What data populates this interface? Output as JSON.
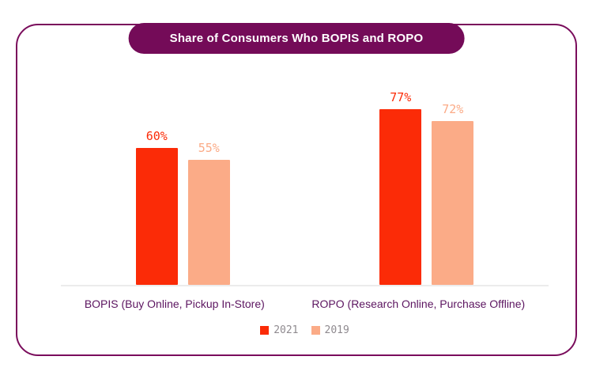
{
  "chart_data": {
    "type": "bar",
    "title": "Share of Consumers Who BOPIS and ROPO",
    "categories": [
      "BOPIS (Buy Online, Pickup In-Store)",
      "ROPO (Research Online, Purchase Offline)"
    ],
    "series": [
      {
        "name": "2021",
        "values": [
          60,
          77
        ],
        "color": "#fb2b07"
      },
      {
        "name": "2019",
        "values": [
          55,
          72
        ],
        "color": "#fbab87"
      }
    ],
    "value_suffix": "%",
    "ylim": [
      0,
      100
    ],
    "grid": false,
    "legend_position": "bottom",
    "xlabel": "",
    "ylabel": ""
  },
  "colors": {
    "card_border": "#7a0d5c",
    "title_pill_bg": "#740b58",
    "title_text": "#ffffff",
    "category_label": "#5c1560",
    "axis_line": "#ececec",
    "legend_text": "#8f8a8f"
  }
}
